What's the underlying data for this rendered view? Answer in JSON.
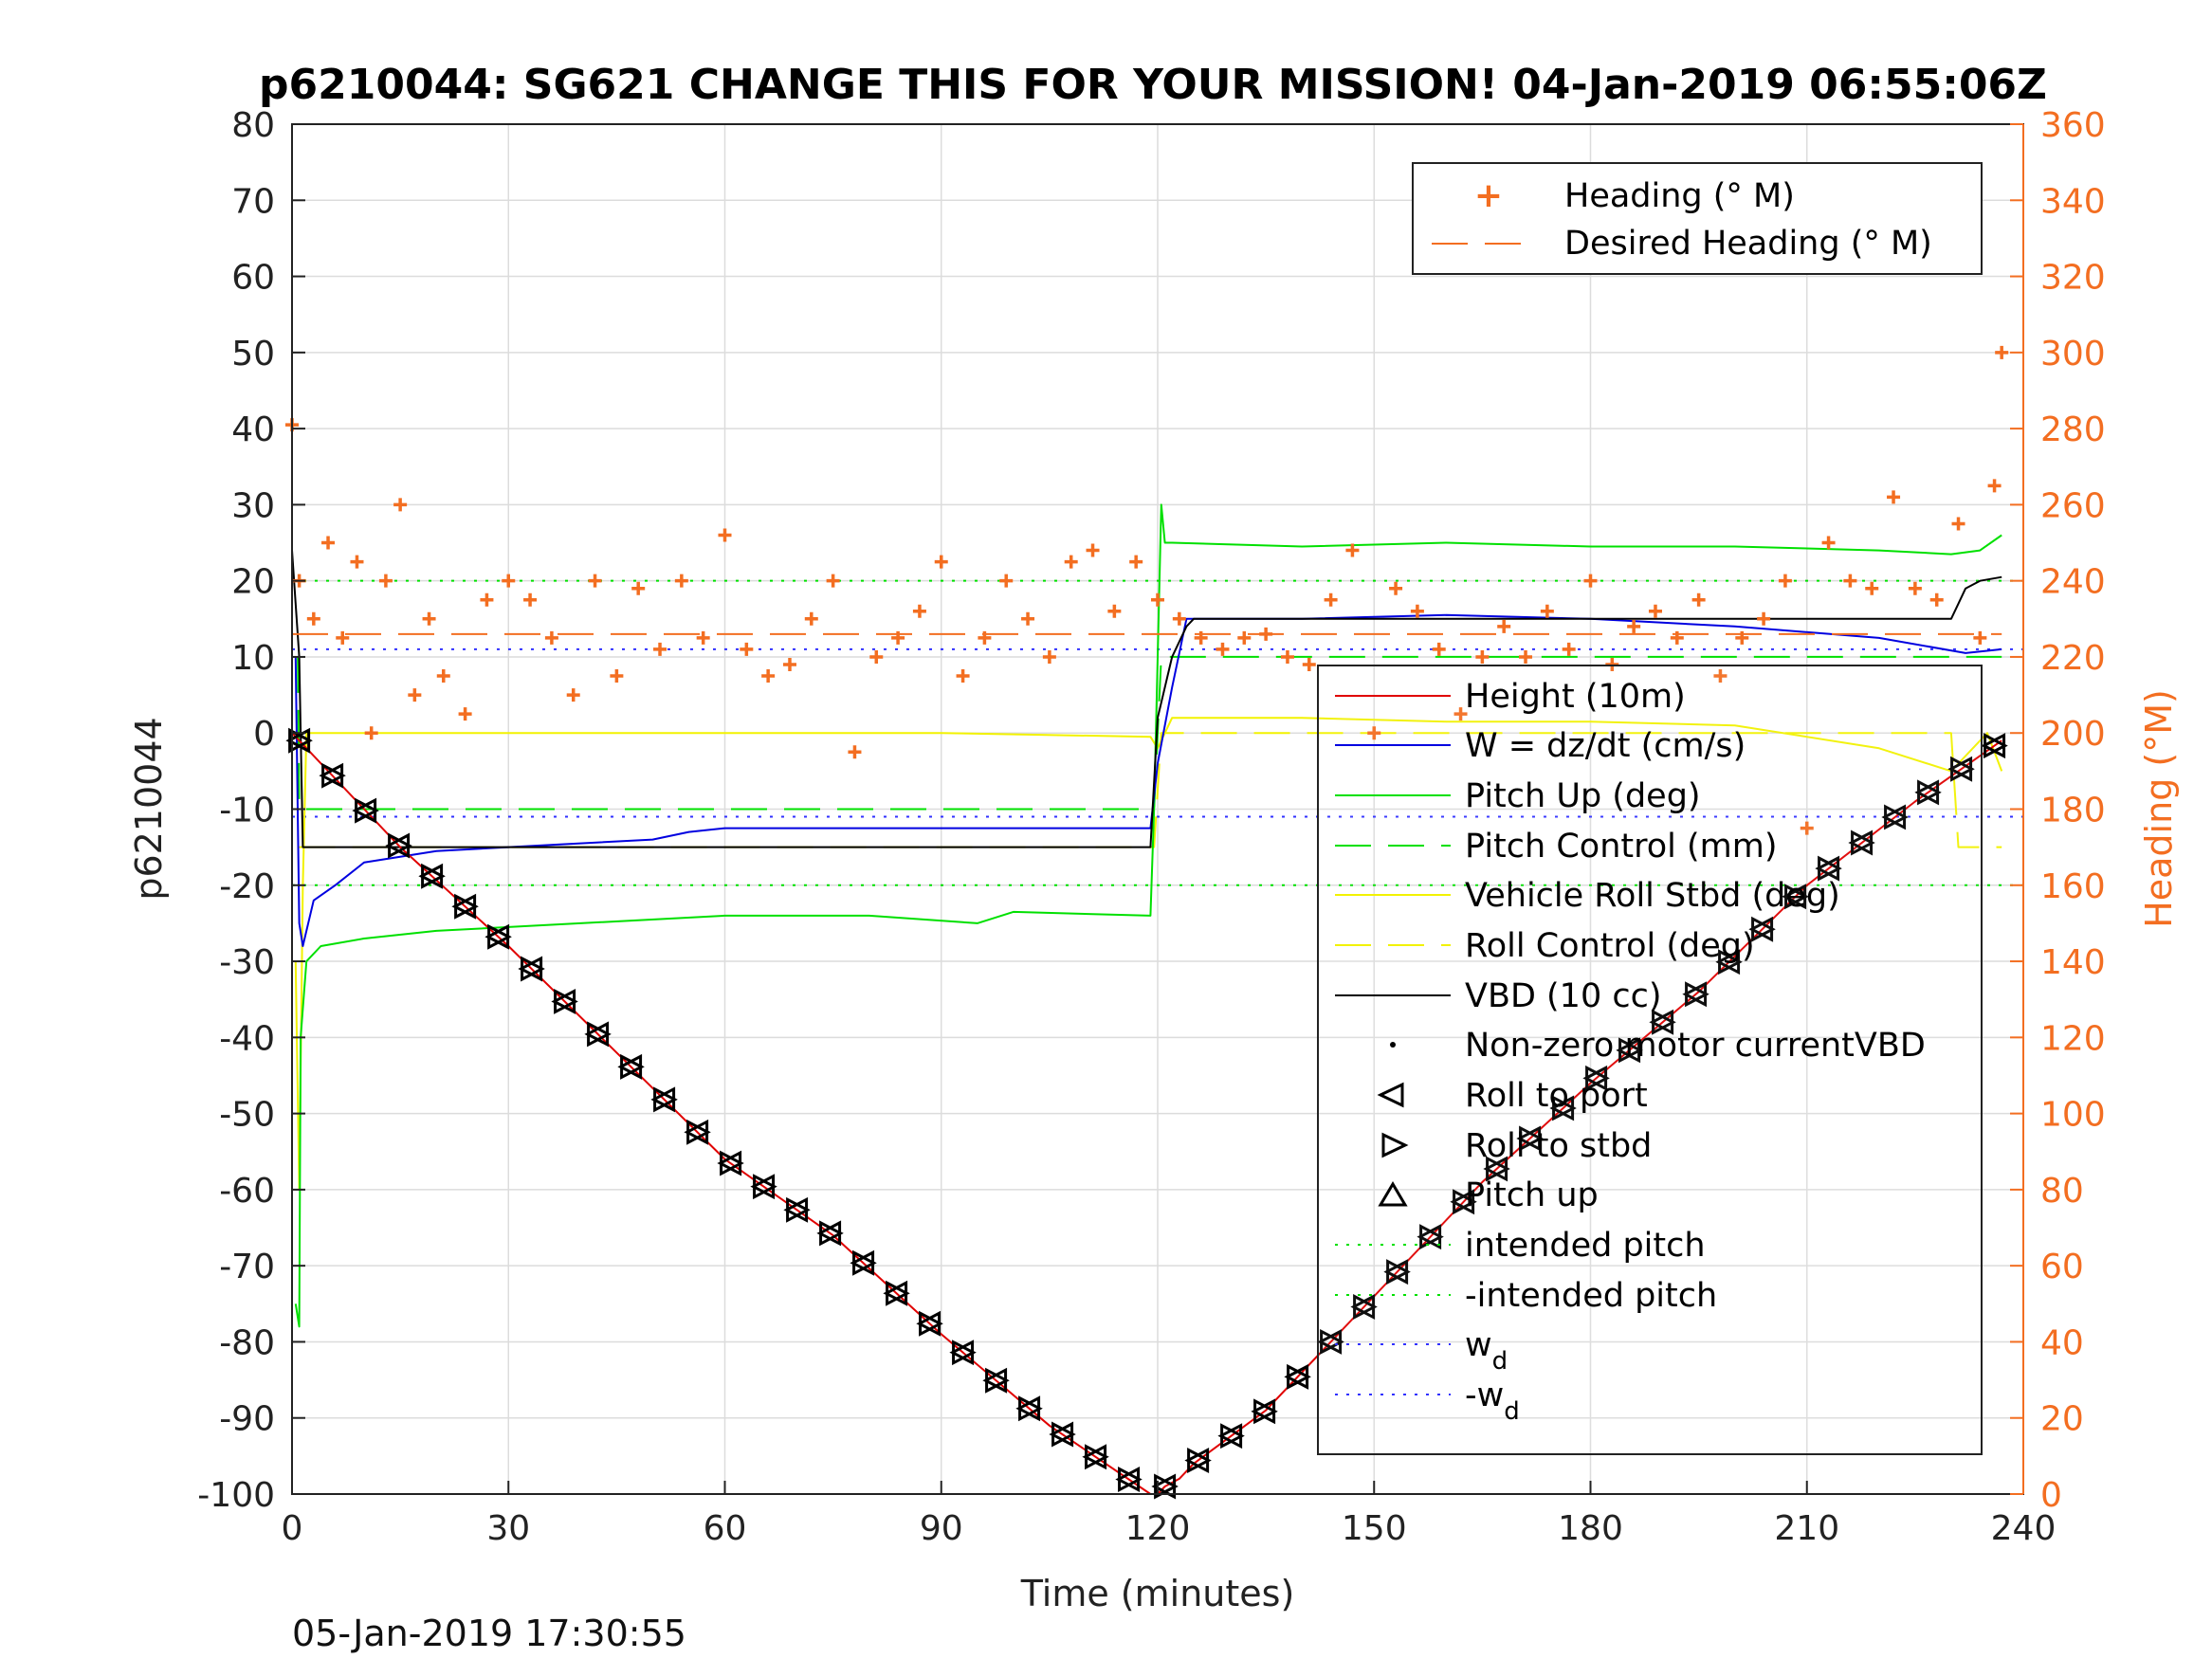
{
  "chart_data": {
    "type": "line",
    "title": "p6210044: SG621 CHANGE THIS FOR YOUR MISSION! 04-Jan-2019 06:55:06Z",
    "xlabel": "Time (minutes)",
    "ylabel": "p6210044",
    "y2label": "Heading (°M)",
    "footer": "05-Jan-2019 17:30:55",
    "xlim": [
      0,
      240
    ],
    "ylim": [
      -100,
      80
    ],
    "y2lim": [
      0,
      360
    ],
    "x_ticks": [
      "0",
      "30",
      "60",
      "90",
      "120",
      "150",
      "180",
      "210",
      "240"
    ],
    "y_ticks": [
      "80",
      "70",
      "60",
      "50",
      "40",
      "30",
      "20",
      "10",
      "0",
      "-10",
      "-20",
      "-30",
      "-40",
      "-50",
      "-60",
      "-70",
      "-80",
      "-90",
      "-100"
    ],
    "y2_ticks": [
      "360",
      "340",
      "320",
      "300",
      "280",
      "260",
      "240",
      "220",
      "200",
      "180",
      "160",
      "140",
      "120",
      "100",
      "80",
      "60",
      "40",
      "20",
      "0"
    ],
    "grid": true,
    "legend_heading": {
      "placement": "top-right",
      "entries": [
        "Heading (° M)",
        "Desired Heading (° M)"
      ]
    },
    "legend_main": {
      "placement": "right",
      "entries": [
        "Height (10m)",
        "W = dz/dt (cm/s)",
        "Pitch Up (deg)",
        "Pitch Control (mm)",
        "Vehicle Roll Stbd (deg)",
        "Roll Control (deg)",
        "VBD (10 cc)",
        "Non-zero motor currentVBD",
        "Roll to port",
        "Roll to stbd",
        "Pitch up",
        "intended pitch",
        "-intended pitch",
        "w",
        "-w"
      ],
      "subscript": "d"
    },
    "colors": {
      "heading": "#f36e21",
      "depth": "#e00000",
      "w": "#0000e0",
      "pitch": "#00e000",
      "roll": "#f2f200",
      "vbd": "#000000",
      "wd": "#3030ff"
    },
    "reference_lines": {
      "intended_pitch": 20,
      "neg_intended_pitch": -20,
      "w_d": 11,
      "neg_w_d": -11
    },
    "series": [
      {
        "name": "Height (10m)",
        "x": [
          0,
          15,
          30,
          45,
          60,
          75,
          90,
          105,
          119,
          120,
          121,
          123,
          125,
          135,
          150,
          165,
          180,
          195,
          210,
          225,
          237
        ],
        "values": [
          0,
          -15,
          -28,
          -42,
          -56,
          -66,
          -79,
          -91,
          -100,
          -100,
          -99,
          -98,
          -96,
          -89,
          -74,
          -59,
          -46,
          -34,
          -20,
          -9,
          -1
        ]
      },
      {
        "name": "W = dz/dt (cm/s)",
        "x": [
          0.5,
          1,
          1.5,
          3,
          6,
          10,
          20,
          30,
          40,
          50,
          55,
          60,
          80,
          100,
          119,
          120,
          122,
          124,
          140,
          160,
          180,
          200,
          220,
          232,
          237
        ],
        "values": [
          10,
          -25,
          -28,
          -22,
          -20,
          -17,
          -15.5,
          -15,
          -14.5,
          -14,
          -13,
          -12.5,
          -12.5,
          -12.5,
          -12.5,
          -4,
          6,
          15,
          15,
          15.5,
          15,
          14,
          12.5,
          10.5,
          11
        ]
      },
      {
        "name": "Pitch Up (deg)",
        "x": [
          0.5,
          1,
          1.2,
          2,
          4,
          10,
          20,
          40,
          60,
          80,
          95,
          100,
          119,
          119.5,
          120.5,
          121,
          122,
          140,
          160,
          180,
          200,
          220,
          230,
          234,
          237
        ],
        "values": [
          -75,
          -78,
          -40,
          -30,
          -28,
          -27,
          -26,
          -25,
          -24,
          -24,
          -25,
          -23.5,
          -24,
          -10,
          30,
          25,
          25,
          24.5,
          25,
          24.5,
          24.5,
          24,
          23.5,
          24,
          26
        ]
      },
      {
        "name": "Pitch Control (mm)",
        "x": [
          0.8,
          1,
          119.5,
          120.5,
          121,
          237
        ],
        "values": [
          10,
          -10,
          -10,
          10,
          10,
          10
        ]
      },
      {
        "name": "Vehicle Roll Stbd (deg)",
        "x": [
          0.5,
          1,
          1.5,
          2,
          10,
          30,
          60,
          90,
          119,
          120,
          122,
          140,
          160,
          180,
          200,
          220,
          230,
          235,
          237
        ],
        "values": [
          -30,
          -60,
          -20,
          0,
          0,
          0,
          0,
          0,
          -0.5,
          -2,
          2,
          2,
          1.5,
          1.5,
          1,
          -2,
          -5,
          0,
          -5
        ]
      },
      {
        "name": "Roll Control (deg)",
        "x": [
          1,
          119.5,
          120.5,
          230,
          231,
          237
        ],
        "values": [
          -15,
          -15,
          0,
          0,
          -15,
          -15
        ]
      },
      {
        "name": "VBD (10 cc)",
        "x": [
          0,
          1,
          1.5,
          2,
          119,
          120,
          122,
          124,
          125,
          138,
          140,
          230,
          231,
          232,
          234,
          237
        ],
        "values": [
          24,
          10,
          -15,
          -15,
          -15,
          2,
          10,
          14,
          15,
          15,
          15,
          15,
          17,
          19,
          20,
          20.5
        ]
      },
      {
        "name": "Heading (° M)",
        "x": [
          0,
          1,
          3,
          5,
          7,
          9,
          11,
          13,
          15,
          17,
          19,
          21,
          24,
          27,
          30,
          33,
          36,
          39,
          42,
          45,
          48,
          51,
          54,
          57,
          60,
          63,
          66,
          69,
          72,
          75,
          78,
          81,
          84,
          87,
          90,
          93,
          96,
          99,
          102,
          105,
          108,
          111,
          114,
          117,
          120,
          123,
          126,
          129,
          132,
          135,
          138,
          141,
          144,
          147,
          150,
          153,
          156,
          159,
          162,
          165,
          168,
          171,
          174,
          177,
          180,
          183,
          186,
          189,
          192,
          195,
          198,
          201,
          204,
          207,
          210,
          213,
          216,
          219,
          222,
          225,
          228,
          231,
          234,
          236,
          237
        ],
        "values": [
          281,
          240,
          230,
          250,
          225,
          245,
          200,
          240,
          260,
          210,
          230,
          215,
          205,
          235,
          240,
          235,
          225,
          210,
          240,
          215,
          238,
          222,
          240,
          225,
          252,
          222,
          215,
          218,
          230,
          240,
          195,
          220,
          225,
          232,
          245,
          215,
          225,
          240,
          230,
          220,
          245,
          248,
          232,
          245,
          235,
          230,
          225,
          222,
          225,
          226,
          220,
          218,
          235,
          248,
          200,
          238,
          232,
          222,
          205,
          220,
          228,
          220,
          232,
          222,
          240,
          218,
          228,
          232,
          225,
          235,
          215,
          225,
          230,
          240,
          175,
          250,
          240,
          238,
          262,
          238,
          235,
          255,
          225,
          265,
          300
        ]
      },
      {
        "name": "Desired Heading (° M)",
        "x": [
          0,
          237
        ],
        "values": [
          226,
          226
        ]
      }
    ]
  }
}
